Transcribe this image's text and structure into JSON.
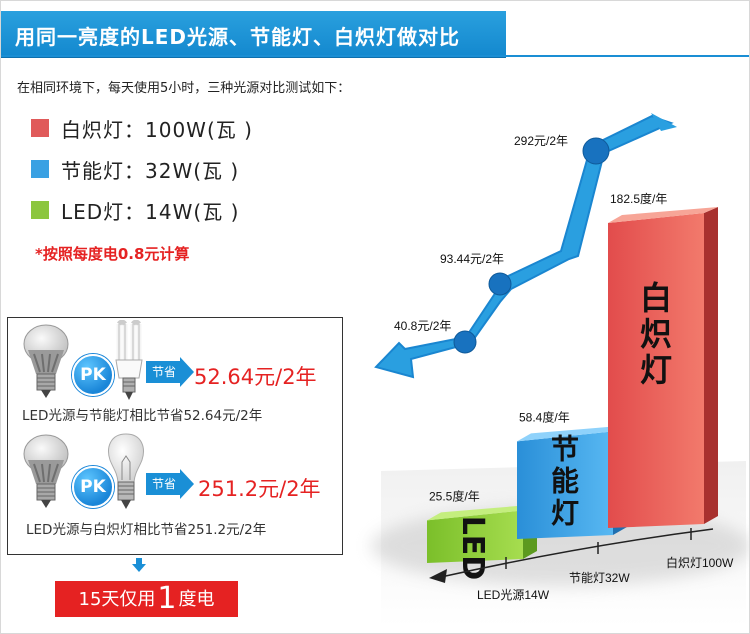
{
  "title": "用同一亮度的LED光源、节能灯、白炽灯做对比",
  "intro": "在相同环境下，每天使用5小时，三种光源对比测试如下：",
  "legend": [
    {
      "label": "白炽灯：100W(瓦 )",
      "color": "#e05a5a"
    },
    {
      "label": "节能灯：32W(瓦 )",
      "color": "#3aa1e3"
    },
    {
      "label": "LED灯：14W(瓦 )",
      "color": "#8cc63f"
    }
  ],
  "note": "*按照每度电0.8元计算",
  "comparisons": [
    {
      "pk": "PK",
      "save_tag": "节省",
      "save_value": "52.64元/2年",
      "desc": "LED光源与节能灯相比节省52.64元/2年"
    },
    {
      "pk": "PK",
      "save_tag": "节省",
      "save_value": "251.2元/2年",
      "desc": "LED光源与白炽灯相比节省251.2元/2年"
    }
  ],
  "result": {
    "prefix": "15天仅用",
    "number": "1",
    "suffix": "度电"
  },
  "chart_data": {
    "type": "bar",
    "categories": [
      "LED光源14W",
      "节能灯32W",
      "白炽灯100W"
    ],
    "bar_labels": [
      "LED",
      "节能灯",
      "白炽灯"
    ],
    "series": [
      {
        "name": "度/年",
        "values": [
          25.5,
          58.4,
          182.5
        ],
        "labels": [
          "25.5度/年",
          "58.4度/年",
          "182.5度/年"
        ]
      }
    ],
    "cost_line": {
      "values": [
        40.8,
        93.44,
        292
      ],
      "labels": [
        "40.8元/2年",
        "93.44元/2年",
        "292元/2年"
      ]
    },
    "colors": [
      "#8cc63f",
      "#3aa1e3",
      "#e05a5a"
    ]
  }
}
